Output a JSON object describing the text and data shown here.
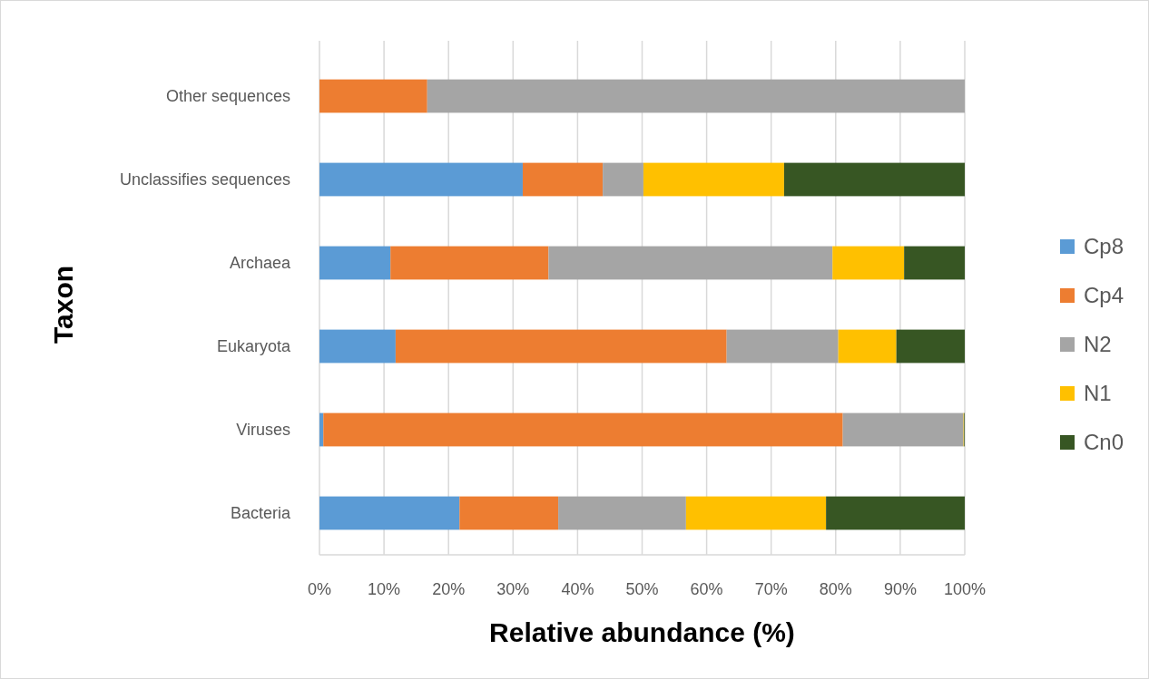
{
  "chart_data": {
    "type": "bar",
    "orientation": "horizontal",
    "stacked": true,
    "xlabel": "Relative abundance (%)",
    "ylabel": "Taxon",
    "categories": [
      "Other sequences",
      "Unclassifies sequences",
      "Archaea",
      "Eukaryota",
      "Viruses",
      "Bacteria"
    ],
    "series": [
      {
        "name": "Cp8",
        "color": "#5b9bd5",
        "values": [
          0,
          31.5,
          11.0,
          11.8,
          0.6,
          21.7
        ]
      },
      {
        "name": "Cp4",
        "color": "#ed7d31",
        "values": [
          16.7,
          12.4,
          24.5,
          51.3,
          80.5,
          15.3
        ]
      },
      {
        "name": "N2",
        "color": "#a5a5a5",
        "values": [
          83.3,
          6.3,
          44.0,
          17.3,
          18.7,
          19.8
        ]
      },
      {
        "name": "N1",
        "color": "#ffc000",
        "values": [
          0,
          21.8,
          11.1,
          9.0,
          0.1,
          21.7
        ]
      },
      {
        "name": "Cn0",
        "color": "#375623",
        "values": [
          0,
          28.0,
          9.4,
          10.6,
          0.1,
          21.5
        ]
      }
    ],
    "xlim": [
      0,
      100
    ],
    "xticks": [
      {
        "value": 0,
        "label": "0%"
      },
      {
        "value": 10,
        "label": "10%"
      },
      {
        "value": 20,
        "label": "20%"
      },
      {
        "value": 30,
        "label": "30%"
      },
      {
        "value": 40,
        "label": "40%"
      },
      {
        "value": 50,
        "label": "50%"
      },
      {
        "value": 60,
        "label": "60%"
      },
      {
        "value": 70,
        "label": "70%"
      },
      {
        "value": 80,
        "label": "80%"
      },
      {
        "value": 90,
        "label": "90%"
      },
      {
        "value": 100,
        "label": "100%"
      }
    ],
    "grid": "x",
    "legend": "right"
  }
}
